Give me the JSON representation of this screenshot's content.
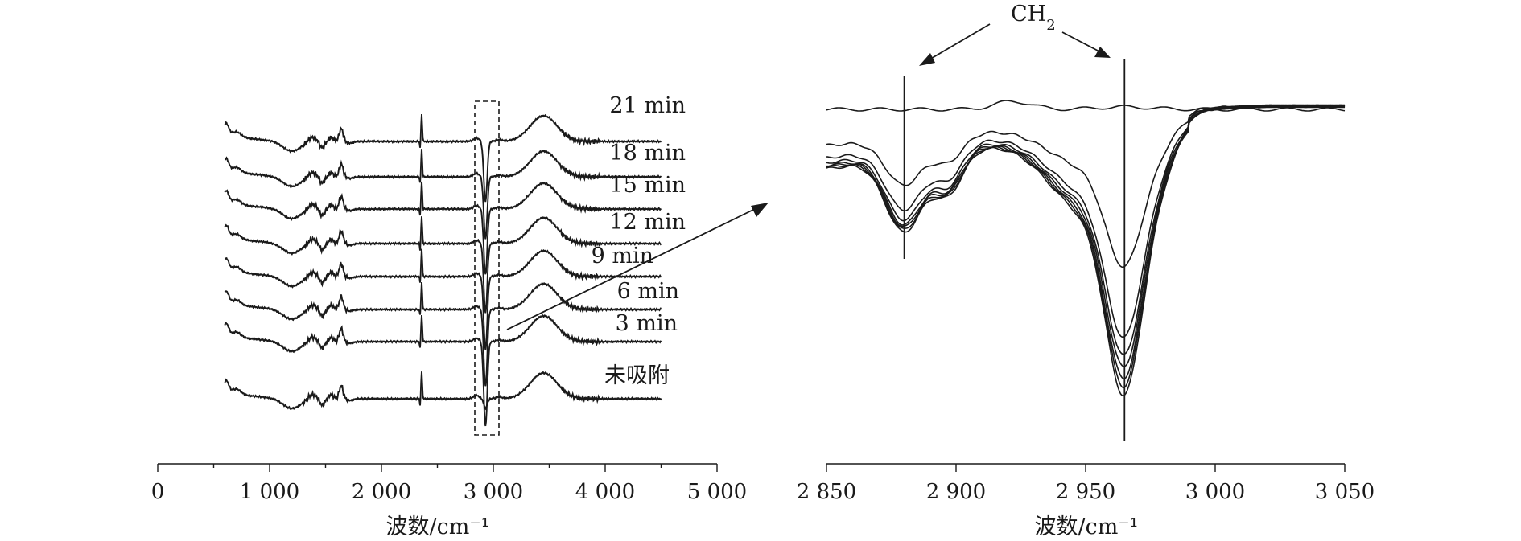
{
  "chart_data": [
    {
      "type": "line",
      "panel": "left",
      "xlabel": "波数/cm⁻¹",
      "xlim": [
        0,
        5000
      ],
      "x_ticks": [
        0,
        1000,
        2000,
        3000,
        4000,
        5000
      ],
      "x_tick_labels": [
        "0",
        "1 000",
        "2 000",
        "3 000",
        "4 000",
        "5 000"
      ],
      "x_range_data": [
        600,
        4500
      ],
      "stacked_offset_spectra": true,
      "series": [
        {
          "name": "21 min",
          "depth": 1.55
        },
        {
          "name": "18 min",
          "depth": 1.6
        },
        {
          "name": "15 min",
          "depth": 1.7
        },
        {
          "name": "12 min",
          "depth": 1.8
        },
        {
          "name": "9 min",
          "depth": 1.9
        },
        {
          "name": "6 min",
          "depth": 2.0
        },
        {
          "name": "3 min",
          "depth": 2.2
        },
        {
          "name": "未吸附",
          "depth": 0.25
        }
      ],
      "zoom_box_x": [
        2850,
        3050
      ],
      "annotations": []
    },
    {
      "type": "line",
      "panel": "right",
      "xlabel": "波数/cm⁻¹",
      "xlim": [
        2850,
        3050
      ],
      "x_ticks": [
        2850,
        2900,
        2950,
        3000,
        3050
      ],
      "x_tick_labels": [
        "2 850",
        "2 900",
        "2 950",
        "3 000",
        "3 050"
      ],
      "marker_lines_x": [
        2880,
        2965
      ],
      "annotation_label": "CH",
      "annotation_subscript": "2",
      "series": [
        {
          "name": "未吸附",
          "min_dip": 0.0,
          "peak_dip": 0.0
        },
        {
          "name": "3 min",
          "min_dip": 0.32,
          "peak_dip": 0.55
        },
        {
          "name": "6 min",
          "min_dip": 0.42,
          "peak_dip": 0.8
        },
        {
          "name": "9 min",
          "min_dip": 0.46,
          "peak_dip": 0.86
        },
        {
          "name": "12 min",
          "min_dip": 0.48,
          "peak_dip": 0.9
        },
        {
          "name": "15 min",
          "min_dip": 0.49,
          "peak_dip": 0.94
        },
        {
          "name": "18 min",
          "min_dip": 0.5,
          "peak_dip": 0.97
        },
        {
          "name": "21 min",
          "min_dip": 0.51,
          "peak_dip": 1.0
        }
      ]
    }
  ]
}
